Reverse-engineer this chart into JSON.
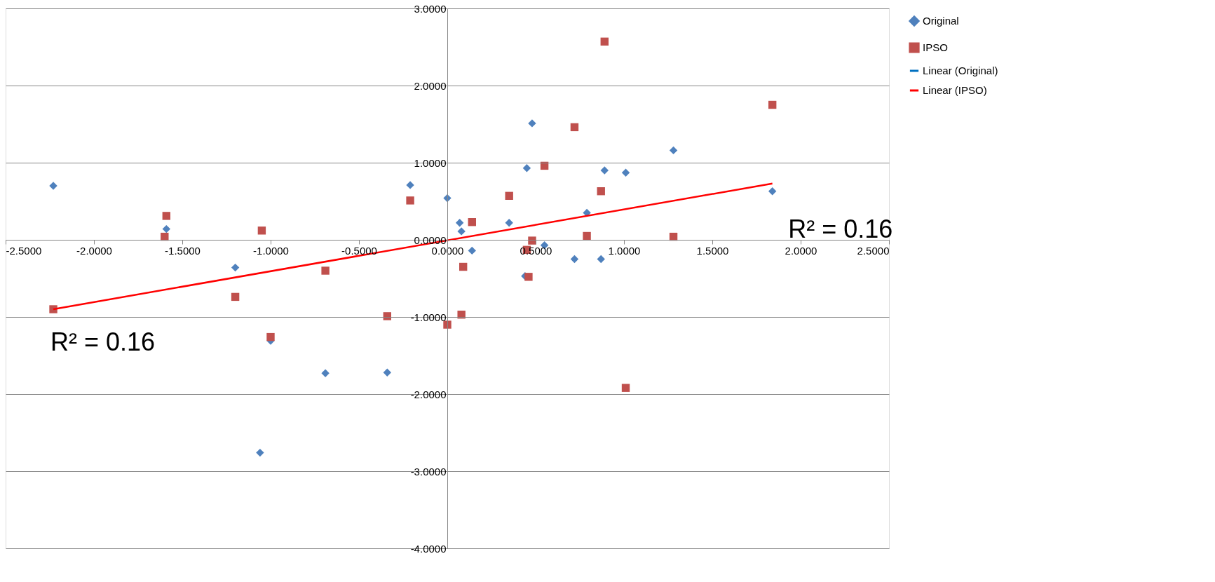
{
  "chart_data": {
    "type": "scatter",
    "xlim": [
      -2.5,
      2.5
    ],
    "ylim": [
      -4,
      3
    ],
    "xticks": [
      {
        "value": -2.5,
        "label": "-2.5000"
      },
      {
        "value": -2,
        "label": "-2.0000"
      },
      {
        "value": -1.5,
        "label": "-1.5000"
      },
      {
        "value": -1,
        "label": "-1.0000"
      },
      {
        "value": -0.5,
        "label": "-0.5000"
      },
      {
        "value": 0,
        "label": "0.0000"
      },
      {
        "value": 0.5,
        "label": "0.5000"
      },
      {
        "value": 1,
        "label": "1.0000"
      },
      {
        "value": 1.5,
        "label": "1.5000"
      },
      {
        "value": 2,
        "label": "2.0000"
      },
      {
        "value": 2.5,
        "label": "2.5000"
      }
    ],
    "yticks": [
      {
        "value": -4,
        "label": "-4.0000"
      },
      {
        "value": -3,
        "label": "-3.0000"
      },
      {
        "value": -2,
        "label": "-2.0000"
      },
      {
        "value": -1,
        "label": "-1.0000"
      },
      {
        "value": 0,
        "label": "0.0000"
      },
      {
        "value": 1,
        "label": "1.0000"
      },
      {
        "value": 2,
        "label": "2.0000"
      },
      {
        "value": 3,
        "label": "3.0000"
      }
    ],
    "grid": "y",
    "legend": "right",
    "series": [
      {
        "name": "Original",
        "marker": "diamond",
        "color": "#4f81bd",
        "x": [
          -2.23,
          -1.59,
          -1.2,
          -1.0,
          -1.06,
          -0.69,
          -0.34,
          -0.21,
          0.0,
          0.07,
          0.08,
          0.14,
          0.35,
          0.45,
          0.48,
          0.44,
          0.55,
          0.72,
          0.79,
          0.87,
          0.89,
          1.01,
          1.28,
          1.84
        ],
        "values": [
          0.7,
          0.14,
          -0.36,
          -1.31,
          -2.76,
          -1.73,
          -1.72,
          0.71,
          0.54,
          0.22,
          0.11,
          -0.14,
          0.22,
          0.93,
          1.51,
          -0.47,
          -0.07,
          -0.25,
          0.35,
          -0.25,
          0.9,
          0.87,
          1.16,
          0.63
        ]
      },
      {
        "name": "IPSO",
        "marker": "square",
        "color": "#c0504d",
        "x": [
          -2.23,
          -1.59,
          -1.6,
          -1.05,
          -1.2,
          -1.0,
          -0.69,
          -0.34,
          -0.21,
          0.0,
          0.08,
          0.09,
          0.14,
          0.35,
          0.45,
          0.48,
          0.46,
          0.55,
          0.72,
          0.79,
          0.89,
          0.87,
          1.01,
          1.28,
          1.84
        ],
        "values": [
          -0.9,
          0.31,
          0.04,
          0.12,
          -0.74,
          -1.26,
          -0.4,
          -0.99,
          0.51,
          -1.1,
          -0.97,
          -0.35,
          0.23,
          0.57,
          -0.13,
          -0.01,
          -0.48,
          0.96,
          1.46,
          0.05,
          2.57,
          0.63,
          -1.92,
          0.04,
          1.75
        ]
      },
      {
        "name": "Linear (Original)",
        "type": "line",
        "marker": "none",
        "line_style": "solid",
        "color": "#0070c0"
      },
      {
        "name": "Linear (IPSO)",
        "type": "line",
        "marker": "none",
        "line_style": "solid",
        "color": "#ff0000",
        "x": [
          -2.23,
          1.84
        ],
        "values": [
          -0.9,
          0.73
        ]
      }
    ],
    "annotations": [
      "R² = 0.16",
      "R² = 0.16"
    ]
  }
}
